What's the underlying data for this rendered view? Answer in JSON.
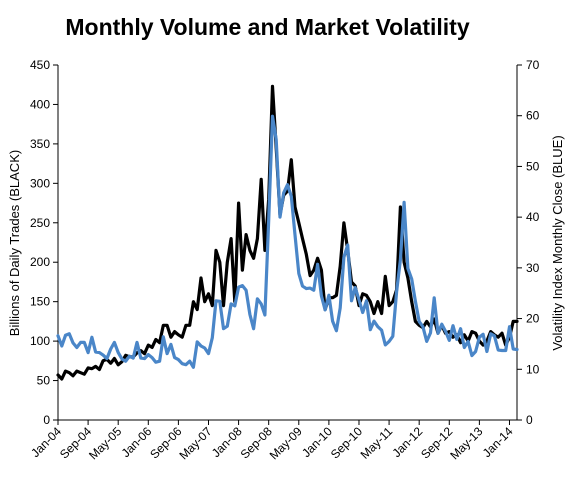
{
  "chart_data": {
    "type": "line",
    "title": "Monthly Volume and Market Volatility",
    "ylabel_left": "Billions of Daily Trades  (BLACK)",
    "ylabel_right": "Volatility Index Monthly Close (BLUE)",
    "ylim_left": [
      0,
      450
    ],
    "yticks_left": [
      0,
      50,
      100,
      150,
      200,
      250,
      300,
      350,
      400,
      450
    ],
    "ylim_right": [
      0,
      70
    ],
    "yticks_right": [
      0,
      10,
      20,
      30,
      40,
      50,
      60,
      70
    ],
    "xlim": [
      "Jan-04",
      "Mar-14"
    ],
    "xticks": [
      "Jan-04",
      "Sep-04",
      "May-05",
      "Jan-06",
      "Sep-06",
      "May-07",
      "Jan-08",
      "Sep-08",
      "May-09",
      "Jan-10",
      "Sep-10",
      "May-11",
      "Jan-12",
      "Sep-12",
      "May-13",
      "Jan-14"
    ],
    "grid": false,
    "legend": "none",
    "series": [
      {
        "axis": "left",
        "color": "#000000",
        "x": [
          "2004-01",
          "2004-02",
          "2004-03",
          "2004-04",
          "2004-05",
          "2004-06",
          "2004-07",
          "2004-08",
          "2004-09",
          "2004-10",
          "2004-11",
          "2004-12",
          "2005-01",
          "2005-02",
          "2005-03",
          "2005-04",
          "2005-05",
          "2005-06",
          "2005-07",
          "2005-08",
          "2005-09",
          "2005-10",
          "2005-11",
          "2005-12",
          "2006-01",
          "2006-02",
          "2006-03",
          "2006-04",
          "2006-05",
          "2006-06",
          "2006-07",
          "2006-08",
          "2006-09",
          "2006-10",
          "2006-11",
          "2006-12",
          "2007-01",
          "2007-02",
          "2007-03",
          "2007-04",
          "2007-05",
          "2007-06",
          "2007-07",
          "2007-08",
          "2007-09",
          "2007-10",
          "2007-11",
          "2007-12",
          "2008-01",
          "2008-02",
          "2008-03",
          "2008-04",
          "2008-05",
          "2008-06",
          "2008-07",
          "2008-08",
          "2008-09",
          "2008-10",
          "2008-11",
          "2008-12",
          "2009-01",
          "2009-02",
          "2009-03",
          "2009-04",
          "2009-05",
          "2009-06",
          "2009-07",
          "2009-08",
          "2009-09",
          "2009-10",
          "2009-11",
          "2009-12",
          "2010-01",
          "2010-02",
          "2010-03",
          "2010-04",
          "2010-05",
          "2010-06",
          "2010-07",
          "2010-08",
          "2010-09",
          "2010-10",
          "2010-11",
          "2010-12",
          "2011-01",
          "2011-02",
          "2011-03",
          "2011-04",
          "2011-05",
          "2011-06",
          "2011-07",
          "2011-08",
          "2011-09",
          "2011-10",
          "2011-11",
          "2011-12",
          "2012-01",
          "2012-02",
          "2012-03",
          "2012-04",
          "2012-05",
          "2012-06",
          "2012-07",
          "2012-08",
          "2012-09",
          "2012-10",
          "2012-11",
          "2012-12",
          "2013-01",
          "2013-02",
          "2013-03",
          "2013-04",
          "2013-05",
          "2013-06",
          "2013-07",
          "2013-08",
          "2013-09",
          "2013-10",
          "2013-11",
          "2013-12",
          "2014-01",
          "2014-02",
          "2014-03"
        ],
        "values": [
          57,
          52,
          62,
          60,
          56,
          62,
          60,
          58,
          66,
          65,
          68,
          64,
          75,
          77,
          72,
          78,
          70,
          74,
          82,
          80,
          80,
          85,
          88,
          84,
          95,
          92,
          102,
          98,
          120,
          120,
          105,
          112,
          108,
          105,
          120,
          120,
          150,
          140,
          180,
          150,
          160,
          145,
          215,
          200,
          145,
          200,
          230,
          150,
          275,
          190,
          235,
          215,
          205,
          230,
          305,
          215,
          280,
          423,
          345,
          260,
          285,
          290,
          330,
          270,
          250,
          230,
          210,
          183,
          190,
          205,
          190,
          140,
          155,
          155,
          158,
          195,
          250,
          215,
          175,
          170,
          145,
          160,
          158,
          150,
          135,
          150,
          135,
          182,
          145,
          150,
          165,
          270,
          200,
          180,
          150,
          125,
          120,
          117,
          125,
          118,
          128,
          110,
          120,
          110,
          112,
          105,
          108,
          98,
          108,
          100,
          112,
          110,
          100,
          95,
          100,
          112,
          108,
          105,
          110,
          95,
          105,
          125,
          125
        ]
      },
      {
        "axis": "right",
        "color": "#4A86C8",
        "x": [
          "2004-01",
          "2004-02",
          "2004-03",
          "2004-04",
          "2004-05",
          "2004-06",
          "2004-07",
          "2004-08",
          "2004-09",
          "2004-10",
          "2004-11",
          "2004-12",
          "2005-01",
          "2005-02",
          "2005-03",
          "2005-04",
          "2005-05",
          "2005-06",
          "2005-07",
          "2005-08",
          "2005-09",
          "2005-10",
          "2005-11",
          "2005-12",
          "2006-01",
          "2006-02",
          "2006-03",
          "2006-04",
          "2006-05",
          "2006-06",
          "2006-07",
          "2006-08",
          "2006-09",
          "2006-10",
          "2006-11",
          "2006-12",
          "2007-01",
          "2007-02",
          "2007-03",
          "2007-04",
          "2007-05",
          "2007-06",
          "2007-07",
          "2007-08",
          "2007-09",
          "2007-10",
          "2007-11",
          "2007-12",
          "2008-01",
          "2008-02",
          "2008-03",
          "2008-04",
          "2008-05",
          "2008-06",
          "2008-07",
          "2008-08",
          "2008-09",
          "2008-10",
          "2008-11",
          "2008-12",
          "2009-01",
          "2009-02",
          "2009-03",
          "2009-04",
          "2009-05",
          "2009-06",
          "2009-07",
          "2009-08",
          "2009-09",
          "2009-10",
          "2009-11",
          "2009-12",
          "2010-01",
          "2010-02",
          "2010-03",
          "2010-04",
          "2010-05",
          "2010-06",
          "2010-07",
          "2010-08",
          "2010-09",
          "2010-10",
          "2010-11",
          "2010-12",
          "2011-01",
          "2011-02",
          "2011-03",
          "2011-04",
          "2011-05",
          "2011-06",
          "2011-07",
          "2011-08",
          "2011-09",
          "2011-10",
          "2011-11",
          "2011-12",
          "2012-01",
          "2012-02",
          "2012-03",
          "2012-04",
          "2012-05",
          "2012-06",
          "2012-07",
          "2012-08",
          "2012-09",
          "2012-10",
          "2012-11",
          "2012-12",
          "2013-01",
          "2013-02",
          "2013-03",
          "2013-04",
          "2013-05",
          "2013-06",
          "2013-07",
          "2013-08",
          "2013-09",
          "2013-10",
          "2013-11",
          "2013-12",
          "2014-01",
          "2014-02",
          "2014-03"
        ],
        "values": [
          16.6,
          14.6,
          16.7,
          17.0,
          15.2,
          14.3,
          15.3,
          15.3,
          13.3,
          16.3,
          13.4,
          13.3,
          12.8,
          12.1,
          14.0,
          15.3,
          13.3,
          12.0,
          11.6,
          12.6,
          12.2,
          15.3,
          12.2,
          12.1,
          12.9,
          12.3,
          11.4,
          11.6,
          16.4,
          13.1,
          14.9,
          12.3,
          11.9,
          11.1,
          10.9,
          11.6,
          10.4,
          15.4,
          14.6,
          14.2,
          13.1,
          16.2,
          23.5,
          23.4,
          18.0,
          18.5,
          22.9,
          22.5,
          26.2,
          26.5,
          25.6,
          20.8,
          18.0,
          23.9,
          22.9,
          20.7,
          39.4,
          59.9,
          55.3,
          40.0,
          44.8,
          46.4,
          44.1,
          36.5,
          28.9,
          26.4,
          25.9,
          26.0,
          25.6,
          30.7,
          24.5,
          21.7,
          24.6,
          19.5,
          17.6,
          22.1,
          32.1,
          34.5,
          23.5,
          26.1,
          23.7,
          21.2,
          23.5,
          17.8,
          19.5,
          18.4,
          17.7,
          14.8,
          15.5,
          16.5,
          25.3,
          31.6,
          42.9,
          29.9,
          27.8,
          23.4,
          19.4,
          18.4,
          15.5,
          17.2,
          24.1,
          17.1,
          18.9,
          17.5,
          15.7,
          18.6,
          15.9,
          18.0,
          14.3,
          15.5,
          12.7,
          13.5,
          16.3,
          16.9,
          13.5,
          17.0,
          16.6,
          13.8,
          13.7,
          13.7,
          18.4,
          14.0,
          13.9
        ]
      }
    ]
  }
}
